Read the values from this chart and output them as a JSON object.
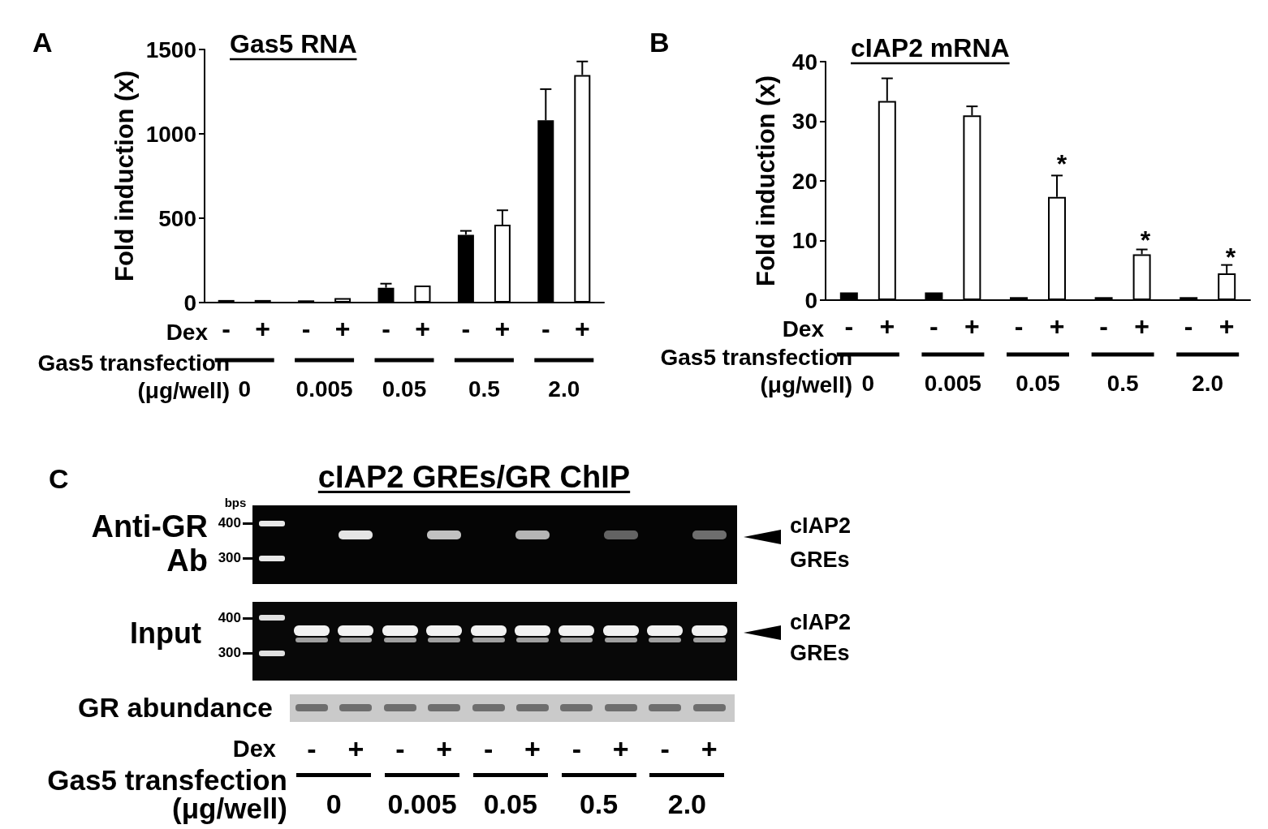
{
  "chart_data": [
    {
      "type": "bar",
      "title": "Gas5 RNA",
      "ylabel": "Fold induction (x)",
      "xlabel": "Gas5 transfection\n(μg/well)",
      "legend_title": "Dex",
      "categories": [
        "0",
        "0.005",
        "0.05",
        "0.5",
        "2.0"
      ],
      "series": [
        {
          "name": "-",
          "color": "#000000",
          "values": [
            15,
            13,
            88,
            402,
            1080
          ],
          "errors": [
            null,
            null,
            [
              88,
              112
            ],
            [
              402,
              425
            ],
            [
              1080,
              1265
            ]
          ]
        },
        {
          "name": "+",
          "color": "#ffffff",
          "values": [
            15,
            27,
            101,
            461,
            1349
          ],
          "errors": [
            null,
            null,
            null,
            [
              461,
              547
            ],
            [
              1349,
              1429
            ]
          ]
        }
      ],
      "ylim": [
        0,
        1500
      ],
      "yticks": [
        0,
        500,
        1000,
        1500
      ],
      "grid": false,
      "legend": false,
      "annotations": [
        "A"
      ]
    },
    {
      "type": "bar",
      "title": "cIAP2 mRNA",
      "ylabel": "Fold induction (x)",
      "xlabel": "Gas5 transfection\n(μg/well)",
      "legend_title": "Dex",
      "categories": [
        "0",
        "0.005",
        "0.05",
        "0.5",
        "2.0"
      ],
      "series": [
        {
          "name": "-",
          "color": "#000000",
          "values": [
            1.3,
            1.3,
            0.5,
            0.5,
            0.5
          ]
        },
        {
          "name": "+",
          "color": "#ffffff",
          "values": [
            33.4,
            31.0,
            17.3,
            7.7,
            4.5
          ],
          "errors": [
            [
              33.4,
              37.2
            ],
            [
              31.0,
              32.5
            ],
            [
              17.3,
              20.9
            ],
            [
              7.7,
              8.5
            ],
            [
              4.5,
              5.9
            ]
          ]
        }
      ],
      "ylim": [
        0,
        40
      ],
      "yticks": [
        0,
        10,
        20,
        30,
        40
      ],
      "grid": false,
      "legend": false,
      "annotations": [
        "B",
        "*",
        "*",
        "*"
      ]
    },
    {
      "type": "other",
      "title": "cIAP2 GREs/GR ChIP",
      "xlabel": "Gas5 transfection\n(μg/well)",
      "categories": [
        "0",
        "0.005",
        "0.05",
        "0.5",
        "2.0"
      ],
      "annotations": [
        "C",
        "Anti-GR\nAb",
        "Input",
        "GR abundance",
        "bps",
        "400",
        "300",
        "400",
        "300",
        "cIAP2\nGREs",
        "cIAP2\nGREs",
        "Dex",
        "-",
        "+",
        "-",
        "+",
        "-",
        "+",
        "-",
        "+",
        "-",
        "+"
      ]
    }
  ]
}
